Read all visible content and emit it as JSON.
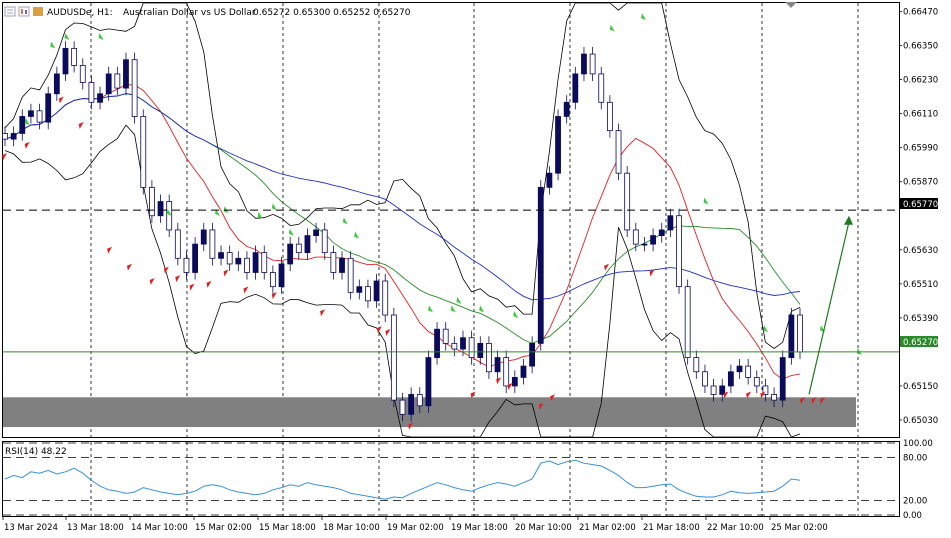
{
  "header": {
    "symbol_text": "AUDUSDe, H1:",
    "description": "Australian Dollar vs US Dollar",
    "ohlc_text": "0.65272 0.65300 0.65252 0.65270"
  },
  "rsi": {
    "label": "RSI(14) 48.22"
  },
  "price_labels": {
    "level_line": "0.65770",
    "current": "0.65270"
  },
  "colors": {
    "bull_candle": "#0b0b5c",
    "bear_candle": "#0b0b5c",
    "ma_fast": "#e02020",
    "ma_mid": "#2a8a2a",
    "ma_slow": "#2030c0",
    "bollinger": "#000000",
    "rsi_line": "#3b8fd6",
    "zone": "#808080",
    "current_price_line": "#2a8a2a",
    "arrow": "#1d7a1d",
    "up_marker": "#3ec93e",
    "down_marker": "#e02020"
  },
  "chart_data": {
    "type": "candlestick",
    "title": "AUDUSDe, H1: Australian Dollar vs US Dollar",
    "x_ticks": [
      "13 Mar 2024",
      "13 Mar 18:00",
      "14 Mar 10:00",
      "15 Mar 02:00",
      "15 Mar 18:00",
      "18 Mar 10:00",
      "19 Mar 02:00",
      "19 Mar 18:00",
      "20 Mar 10:00",
      "21 Mar 02:00",
      "21 Mar 18:00",
      "22 Mar 10:00",
      "25 Mar 02:00"
    ],
    "y_ticks": [
      "0.66470",
      "0.66350",
      "0.66230",
      "0.66110",
      "0.65990",
      "0.65870",
      "0.65750",
      "0.65630",
      "0.65510",
      "0.65390",
      "0.65150",
      "0.65030"
    ],
    "ylim": [
      0.6497,
      0.665
    ],
    "rsi_ticks": [
      "100.00",
      "80.00",
      "20.00",
      "0.00"
    ],
    "rsi_lim": [
      0,
      100
    ],
    "rsi_levels": [
      80,
      20
    ],
    "horizontal_level": 0.6577,
    "current_price": 0.6527,
    "demand_zone": [
      0.65005,
      0.6511
    ],
    "close": [
      0.6602,
      0.6604,
      0.661,
      0.6612,
      0.6608,
      0.6618,
      0.6625,
      0.6634,
      0.6628,
      0.6622,
      0.6615,
      0.6618,
      0.6625,
      0.662,
      0.663,
      0.661,
      0.6585,
      0.6575,
      0.658,
      0.657,
      0.656,
      0.6555,
      0.6565,
      0.657,
      0.656,
      0.6562,
      0.6558,
      0.656,
      0.6555,
      0.6562,
      0.6555,
      0.655,
      0.6558,
      0.6565,
      0.6562,
      0.6568,
      0.657,
      0.6562,
      0.6555,
      0.656,
      0.6548,
      0.655,
      0.6545,
      0.6552,
      0.654,
      0.651,
      0.6505,
      0.6512,
      0.6508,
      0.6525,
      0.6535,
      0.653,
      0.6528,
      0.6532,
      0.6525,
      0.653,
      0.652,
      0.6525,
      0.6515,
      0.6518,
      0.6522,
      0.653,
      0.6585,
      0.659,
      0.661,
      0.6615,
      0.6625,
      0.6632,
      0.6625,
      0.6615,
      0.6605,
      0.659,
      0.657,
      0.6565,
      0.6565,
      0.6568,
      0.657,
      0.6575,
      0.655,
      0.6525,
      0.652,
      0.6515,
      0.6512,
      0.6515,
      0.652,
      0.6522,
      0.6518,
      0.6515,
      0.6512,
      0.651,
      0.6525,
      0.654,
      0.6527
    ],
    "rsi": [
      50,
      55,
      52,
      60,
      58,
      62,
      57,
      60,
      65,
      58,
      48,
      40,
      35,
      33,
      30,
      32,
      38,
      35,
      32,
      30,
      28,
      30,
      33,
      40,
      42,
      40,
      35,
      32,
      30,
      28,
      30,
      35,
      38,
      42,
      40,
      45,
      42,
      40,
      38,
      35,
      30,
      28,
      26,
      24,
      22,
      25,
      24,
      30,
      35,
      40,
      45,
      42,
      38,
      35,
      33,
      38,
      42,
      45,
      43,
      40,
      45,
      50,
      72,
      75,
      70,
      74,
      76,
      72,
      70,
      68,
      62,
      55,
      45,
      38,
      38,
      40,
      42,
      43,
      35,
      30,
      26,
      25,
      25,
      28,
      33,
      31,
      30,
      31,
      32,
      33,
      40,
      50,
      48.22
    ],
    "up_signals": [
      [
        8,
        0.6608
      ],
      [
        17,
        0.6635
      ],
      [
        22,
        0.6638
      ],
      [
        34,
        0.6638
      ],
      [
        58,
        0.6576
      ],
      [
        75,
        0.6576
      ],
      [
        78,
        0.6577
      ],
      [
        90,
        0.6575
      ],
      [
        95,
        0.6578
      ],
      [
        101,
        0.6569
      ],
      [
        120,
        0.6573
      ],
      [
        124,
        0.6568
      ],
      [
        150,
        0.6542
      ],
      [
        158,
        0.6542
      ],
      [
        160,
        0.6545
      ],
      [
        168,
        0.6542
      ],
      [
        180,
        0.654
      ],
      [
        214,
        0.6641
      ],
      [
        225,
        0.6645
      ],
      [
        247,
        0.658
      ],
      [
        268,
        0.6535
      ],
      [
        288,
        0.6535
      ],
      [
        301,
        0.6527
      ]
    ],
    "down_signals": [
      [
        0,
        0.6596
      ],
      [
        8,
        0.66
      ],
      [
        20,
        0.6616
      ],
      [
        27,
        0.6607
      ],
      [
        37,
        0.6563
      ],
      [
        44,
        0.6557
      ],
      [
        52,
        0.6552
      ],
      [
        57,
        0.6556
      ],
      [
        61,
        0.6553
      ],
      [
        66,
        0.655
      ],
      [
        72,
        0.6551
      ],
      [
        78,
        0.6555
      ],
      [
        85,
        0.6549
      ],
      [
        95,
        0.6547
      ],
      [
        112,
        0.6541
      ],
      [
        132,
        0.6535
      ],
      [
        135,
        0.6534
      ],
      [
        143,
        0.6501
      ],
      [
        165,
        0.6512
      ],
      [
        174,
        0.6517
      ],
      [
        178,
        0.6515
      ],
      [
        189,
        0.6508
      ],
      [
        193,
        0.6511
      ],
      [
        212,
        0.6557
      ],
      [
        228,
        0.6555
      ],
      [
        254,
        0.6512
      ],
      [
        262,
        0.6512
      ],
      [
        267,
        0.6512
      ],
      [
        281,
        0.651
      ],
      [
        285,
        0.651
      ],
      [
        288,
        0.651
      ]
    ]
  }
}
